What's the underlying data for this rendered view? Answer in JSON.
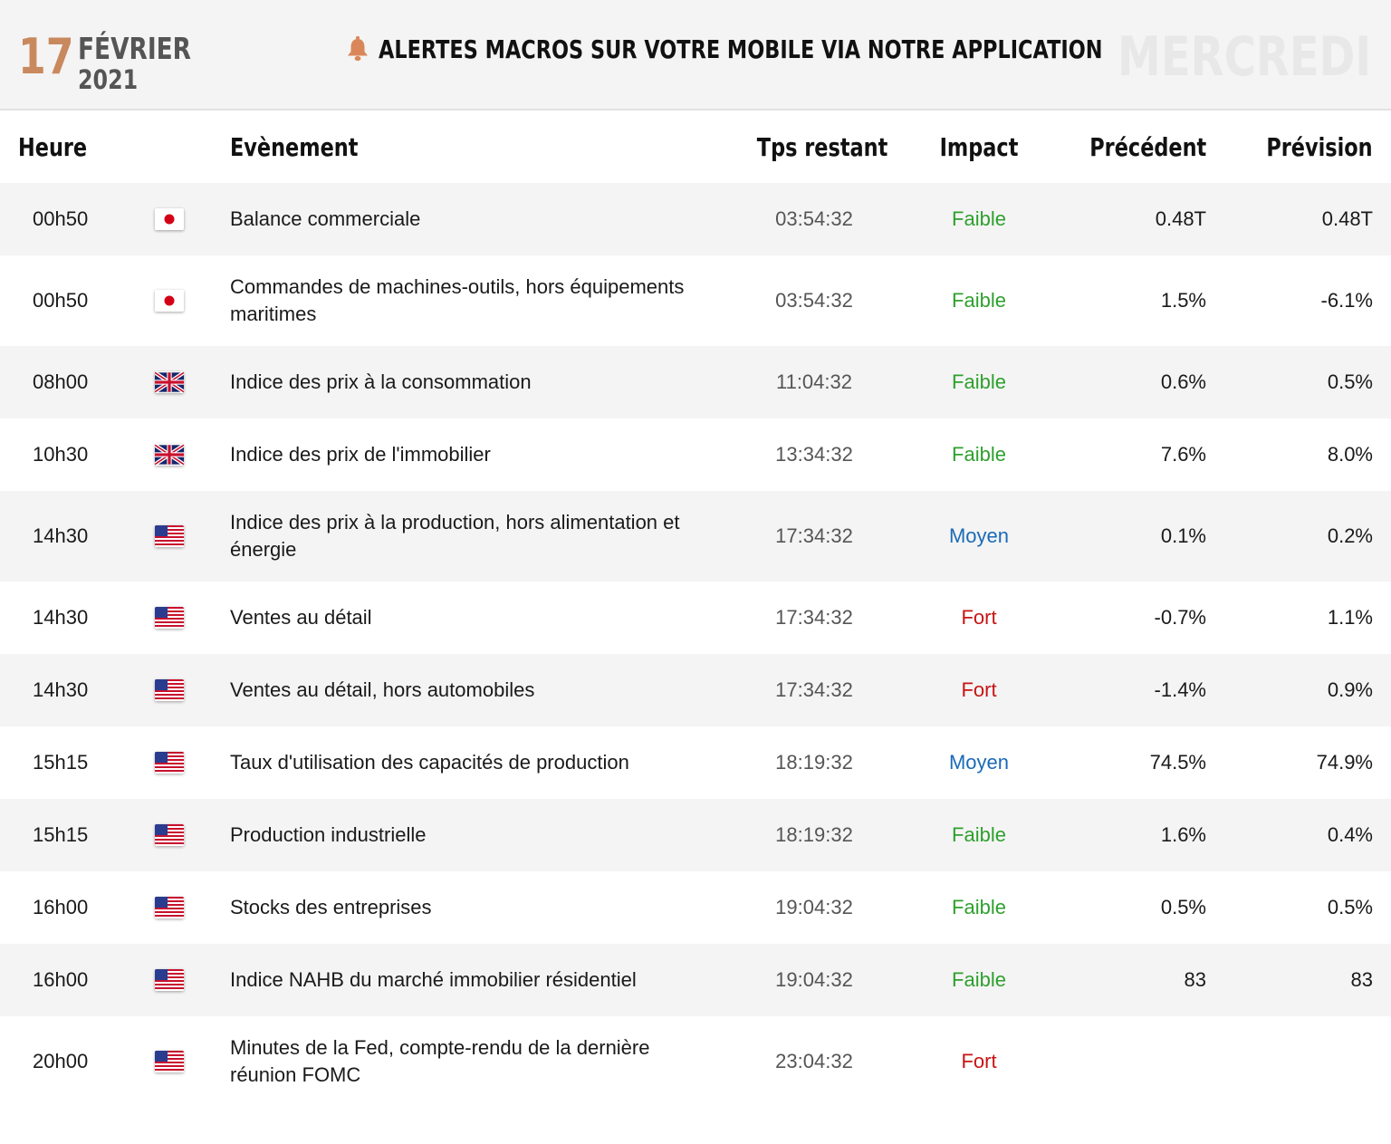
{
  "header": {
    "day": "17",
    "month": "FÉVRIER",
    "year": "2021",
    "alert_text": "ALERTES MACROS SUR VOTRE MOBILE VIA NOTRE APPLICATION",
    "alert_icon": "bell-icon",
    "weekday": "MERCREDI"
  },
  "columns": {
    "time": "Heure",
    "event": "Evènement",
    "remaining": "Tps restant",
    "impact": "Impact",
    "previous": "Précédent",
    "forecast": "Prévision"
  },
  "colors": {
    "accent": "#c9895e",
    "impact_faible": "#2ea02e",
    "impact_moyen": "#1a6ab8",
    "impact_fort": "#c81414",
    "row_alt": "#f4f4f4"
  },
  "events": [
    {
      "time": "00h50",
      "flag": "japan-flag-icon",
      "event": "Balance commerciale",
      "remaining": "03:54:32",
      "impact": "Faible",
      "previous": "0.48T",
      "forecast": "0.48T"
    },
    {
      "time": "00h50",
      "flag": "japan-flag-icon",
      "event": "Commandes de machines-outils, hors équipements maritimes",
      "remaining": "03:54:32",
      "impact": "Faible",
      "previous": "1.5%",
      "forecast": "-6.1%"
    },
    {
      "time": "08h00",
      "flag": "uk-flag-icon",
      "event": "Indice des prix à la consommation",
      "remaining": "11:04:32",
      "impact": "Faible",
      "previous": "0.6%",
      "forecast": "0.5%"
    },
    {
      "time": "10h30",
      "flag": "uk-flag-icon",
      "event": "Indice des prix de l'immobilier",
      "remaining": "13:34:32",
      "impact": "Faible",
      "previous": "7.6%",
      "forecast": "8.0%"
    },
    {
      "time": "14h30",
      "flag": "us-flag-icon",
      "event": "Indice des prix à la production, hors alimentation et énergie",
      "remaining": "17:34:32",
      "impact": "Moyen",
      "previous": "0.1%",
      "forecast": "0.2%"
    },
    {
      "time": "14h30",
      "flag": "us-flag-icon",
      "event": "Ventes au détail",
      "remaining": "17:34:32",
      "impact": "Fort",
      "previous": "-0.7%",
      "forecast": "1.1%"
    },
    {
      "time": "14h30",
      "flag": "us-flag-icon",
      "event": "Ventes au détail, hors automobiles",
      "remaining": "17:34:32",
      "impact": "Fort",
      "previous": "-1.4%",
      "forecast": "0.9%"
    },
    {
      "time": "15h15",
      "flag": "us-flag-icon",
      "event": "Taux d'utilisation des capacités de production",
      "remaining": "18:19:32",
      "impact": "Moyen",
      "previous": "74.5%",
      "forecast": "74.9%"
    },
    {
      "time": "15h15",
      "flag": "us-flag-icon",
      "event": "Production industrielle",
      "remaining": "18:19:32",
      "impact": "Faible",
      "previous": "1.6%",
      "forecast": "0.4%"
    },
    {
      "time": "16h00",
      "flag": "us-flag-icon",
      "event": "Stocks des entreprises",
      "remaining": "19:04:32",
      "impact": "Faible",
      "previous": "0.5%",
      "forecast": "0.5%"
    },
    {
      "time": "16h00",
      "flag": "us-flag-icon",
      "event": "Indice NAHB du marché immobilier résidentiel",
      "remaining": "19:04:32",
      "impact": "Faible",
      "previous": "83",
      "forecast": "83"
    },
    {
      "time": "20h00",
      "flag": "us-flag-icon",
      "event": "Minutes de la Fed, compte-rendu de la dernière réunion FOMC",
      "remaining": "23:04:32",
      "impact": "Fort",
      "previous": "",
      "forecast": ""
    }
  ]
}
